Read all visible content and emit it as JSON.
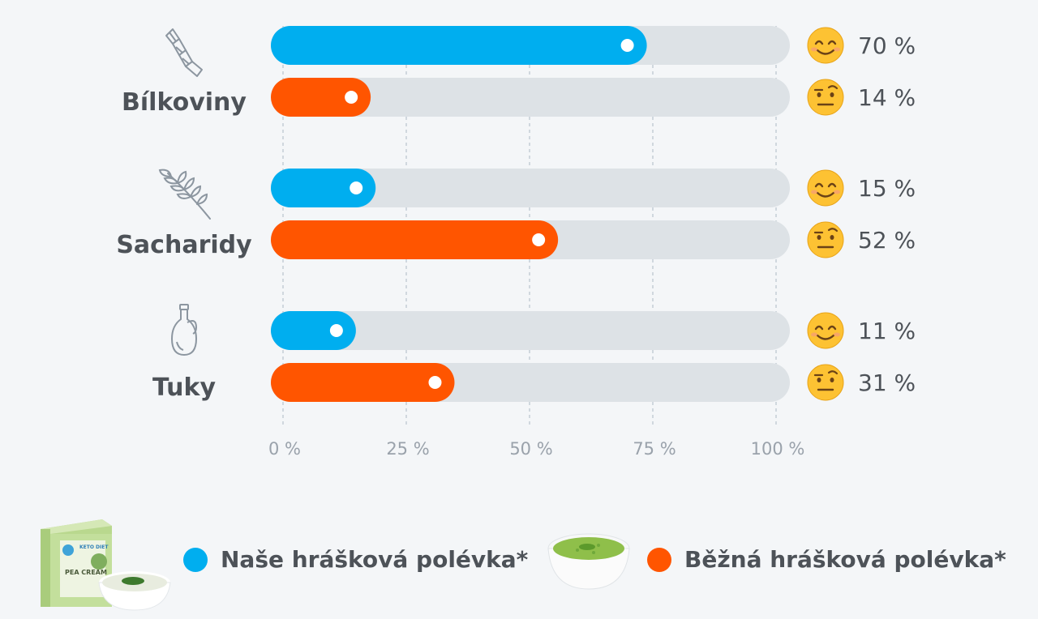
{
  "chart_data": {
    "type": "bar",
    "orientation": "horizontal",
    "categories": [
      "Bílkoviny",
      "Sacharidy",
      "Tuky"
    ],
    "series": [
      {
        "name": "Naše hrášková polévka*",
        "color": "#00aeef",
        "values": [
          70,
          15,
          11
        ]
      },
      {
        "name": "Běžná hrášková polévka*",
        "color": "#ff5500",
        "values": [
          14,
          52,
          31
        ]
      }
    ],
    "value_labels": [
      [
        "70 %",
        "15 %",
        "11 %"
      ],
      [
        "14 %",
        "52 %",
        "31 %"
      ]
    ],
    "xlim": [
      0,
      100
    ],
    "ticks": [
      0,
      25,
      50,
      75,
      100
    ],
    "tick_labels": [
      "0 %",
      "25 %",
      "50 %",
      "75 %",
      "100 %"
    ],
    "grid": "vertical dashed",
    "legend_position": "bottom",
    "track_color": "#dde2e6"
  },
  "icons": {
    "categories": [
      "pasta-icon",
      "wheat-icon",
      "oil-bottle-icon"
    ],
    "series_emoji": [
      "smiling-face-icon",
      "raised-eyebrow-face-icon"
    ]
  },
  "legend": {
    "ours_label": "Naše hrášková polévka*",
    "regular_label": "Běžná hrášková polévka*"
  },
  "product_box": {
    "brand": "KETO DIET",
    "name": "PEA CREAM"
  }
}
